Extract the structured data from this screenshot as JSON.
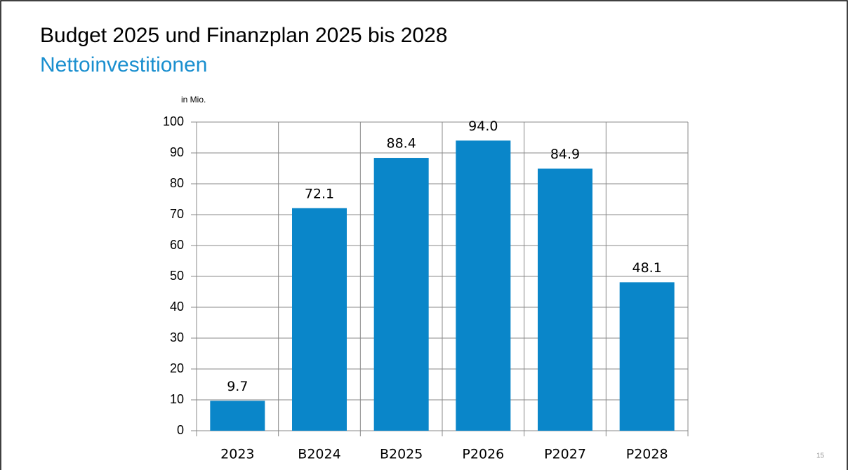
{
  "chart_data": {
    "type": "bar",
    "title": "Budget 2025 und Finanzplan 2025 bis 2028",
    "subtitle": "Nettoinvestitionen",
    "y_label": "in Mio.",
    "categories": [
      "2023",
      "B2024",
      "B2025",
      "P2026",
      "P2027",
      "P2028"
    ],
    "values": [
      9.7,
      72.1,
      88.4,
      94.0,
      84.9,
      48.1
    ],
    "value_labels": [
      "9.7",
      "72.1",
      "88.4",
      "94.0",
      "84.9",
      "48.1"
    ],
    "color": "#0a86c9",
    "ylim": [
      0,
      100
    ],
    "yticks": [
      0,
      10,
      20,
      30,
      40,
      50,
      60,
      70,
      80,
      90,
      100
    ],
    "grid": true,
    "page_number": "15"
  }
}
